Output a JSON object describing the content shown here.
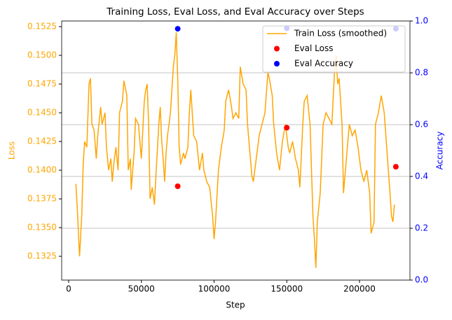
{
  "chart_data": {
    "type": "line",
    "title": "Training Loss, Eval Loss, and Eval Accuracy over Steps",
    "xlabel": "Step",
    "ylabel": "Loss",
    "y2label": "Accuracy",
    "ycolor": "orange",
    "y2color": "blue",
    "xlim": [
      -4800,
      234700
    ],
    "ylim": [
      0.13043,
      0.15299
    ],
    "y2lim": [
      0,
      1
    ],
    "xticks": [
      0,
      50000,
      100000,
      150000,
      200000
    ],
    "yticks": [
      0.1325,
      {
        "value": 0.135,
        "label": "0.1350"
      },
      0.1375,
      {
        "value": 0.14,
        "label": "0.1400"
      },
      0.1425,
      {
        "value": 0.145,
        "label": "0.1450"
      },
      0.1475,
      {
        "value": 0.15,
        "label": "0.1500"
      },
      0.1525
    ],
    "y2ticks": [
      {
        "value": 0,
        "label": "0.0"
      },
      0.2,
      0.4,
      0.6,
      0.8,
      {
        "value": 1,
        "label": "1.0"
      }
    ],
    "grid_axis": "y2",
    "legend": "upper right",
    "series": [
      {
        "name": "Train Loss (smoothed)",
        "type": "line",
        "color": "orange",
        "x": [
          5000,
          6000,
          7500,
          9000,
          10000,
          11000,
          12500,
          14000,
          15000,
          16000,
          17500,
          19000,
          20000,
          22000,
          23000,
          25000,
          26000,
          27500,
          29000,
          30000,
          31000,
          32500,
          34000,
          35000,
          37000,
          38000,
          40000,
          41000,
          42500,
          43000,
          45000,
          46000,
          48000,
          50000,
          52000,
          53000,
          54000,
          55000,
          56000,
          57500,
          59000,
          60000,
          62000,
          63000,
          64000,
          65000,
          66000,
          67000,
          68000,
          70000,
          71000,
          72000,
          73000,
          74000,
          75000,
          76000,
          77000,
          79000,
          80000,
          82000,
          83000,
          84000,
          86000,
          88000,
          90000,
          92000,
          93000,
          95000,
          97000,
          99000,
          100000,
          101000,
          103000,
          105000,
          107000,
          108000,
          110000,
          112000,
          113000,
          115000,
          117000,
          118000,
          120000,
          122000,
          123000,
          125000,
          126000,
          127000,
          129000,
          131000,
          133000,
          135000,
          137000,
          138000,
          140000,
          141000,
          143000,
          145000,
          147000,
          149000,
          151000,
          152000,
          154000,
          156000,
          158000,
          159000,
          161000,
          162000,
          164000,
          166000,
          168000,
          169000,
          170000,
          171000,
          173000,
          175000,
          177000,
          179000,
          181000,
          183000,
          184000,
          185000,
          186000,
          188000,
          189000,
          191000,
          193000,
          195000,
          197000,
          199000,
          201000,
          203000,
          205000,
          207000,
          208000,
          210000,
          211000,
          213000,
          215000,
          217000,
          219000,
          221000,
          222000,
          223000,
          224000
        ],
        "values": [
          0.1388,
          0.1365,
          0.1325,
          0.136,
          0.1405,
          0.1425,
          0.142,
          0.1475,
          0.148,
          0.144,
          0.1435,
          0.141,
          0.143,
          0.1455,
          0.144,
          0.145,
          0.142,
          0.14,
          0.141,
          0.139,
          0.1405,
          0.142,
          0.14,
          0.145,
          0.146,
          0.1478,
          0.1465,
          0.14,
          0.141,
          0.1383,
          0.1415,
          0.1445,
          0.144,
          0.141,
          0.146,
          0.147,
          0.1475,
          0.144,
          0.1375,
          0.1385,
          0.137,
          0.1395,
          0.144,
          0.1455,
          0.1425,
          0.141,
          0.139,
          0.1415,
          0.143,
          0.145,
          0.147,
          0.149,
          0.15,
          0.152,
          0.148,
          0.142,
          0.1405,
          0.1415,
          0.141,
          0.142,
          0.145,
          0.147,
          0.143,
          0.1425,
          0.14,
          0.1415,
          0.14,
          0.139,
          0.1385,
          0.136,
          0.134,
          0.1355,
          0.14,
          0.142,
          0.1435,
          0.146,
          0.147,
          0.1455,
          0.1445,
          0.145,
          0.1445,
          0.149,
          0.1475,
          0.147,
          0.144,
          0.141,
          0.1395,
          0.139,
          0.141,
          0.143,
          0.144,
          0.145,
          0.1485,
          0.148,
          0.1465,
          0.144,
          0.1415,
          0.14,
          0.1425,
          0.144,
          0.142,
          0.1415,
          0.1425,
          0.141,
          0.14,
          0.1385,
          0.144,
          0.146,
          0.1465,
          0.144,
          0.136,
          0.134,
          0.1315,
          0.1355,
          0.138,
          0.144,
          0.145,
          0.1445,
          0.144,
          0.149,
          0.15,
          0.1475,
          0.148,
          0.144,
          0.138,
          0.141,
          0.144,
          0.143,
          0.1435,
          0.142,
          0.14,
          0.139,
          0.14,
          0.138,
          0.1345,
          0.1355,
          0.144,
          0.145,
          0.1465,
          0.145,
          0.1415,
          0.138,
          0.136,
          0.1355,
          0.137
        ]
      },
      {
        "name": "Eval Loss",
        "type": "scatter",
        "color": "red",
        "x": [
          75000,
          150000,
          225000
        ],
        "values": [
          0.1386,
          0.1437,
          0.1403
        ]
      },
      {
        "name": "Eval Accuracy",
        "type": "scatter",
        "color": "blue",
        "axis": "y2",
        "x": [
          75000,
          150000,
          225000
        ],
        "values": [
          0.97,
          0.972,
          0.97
        ]
      }
    ]
  }
}
